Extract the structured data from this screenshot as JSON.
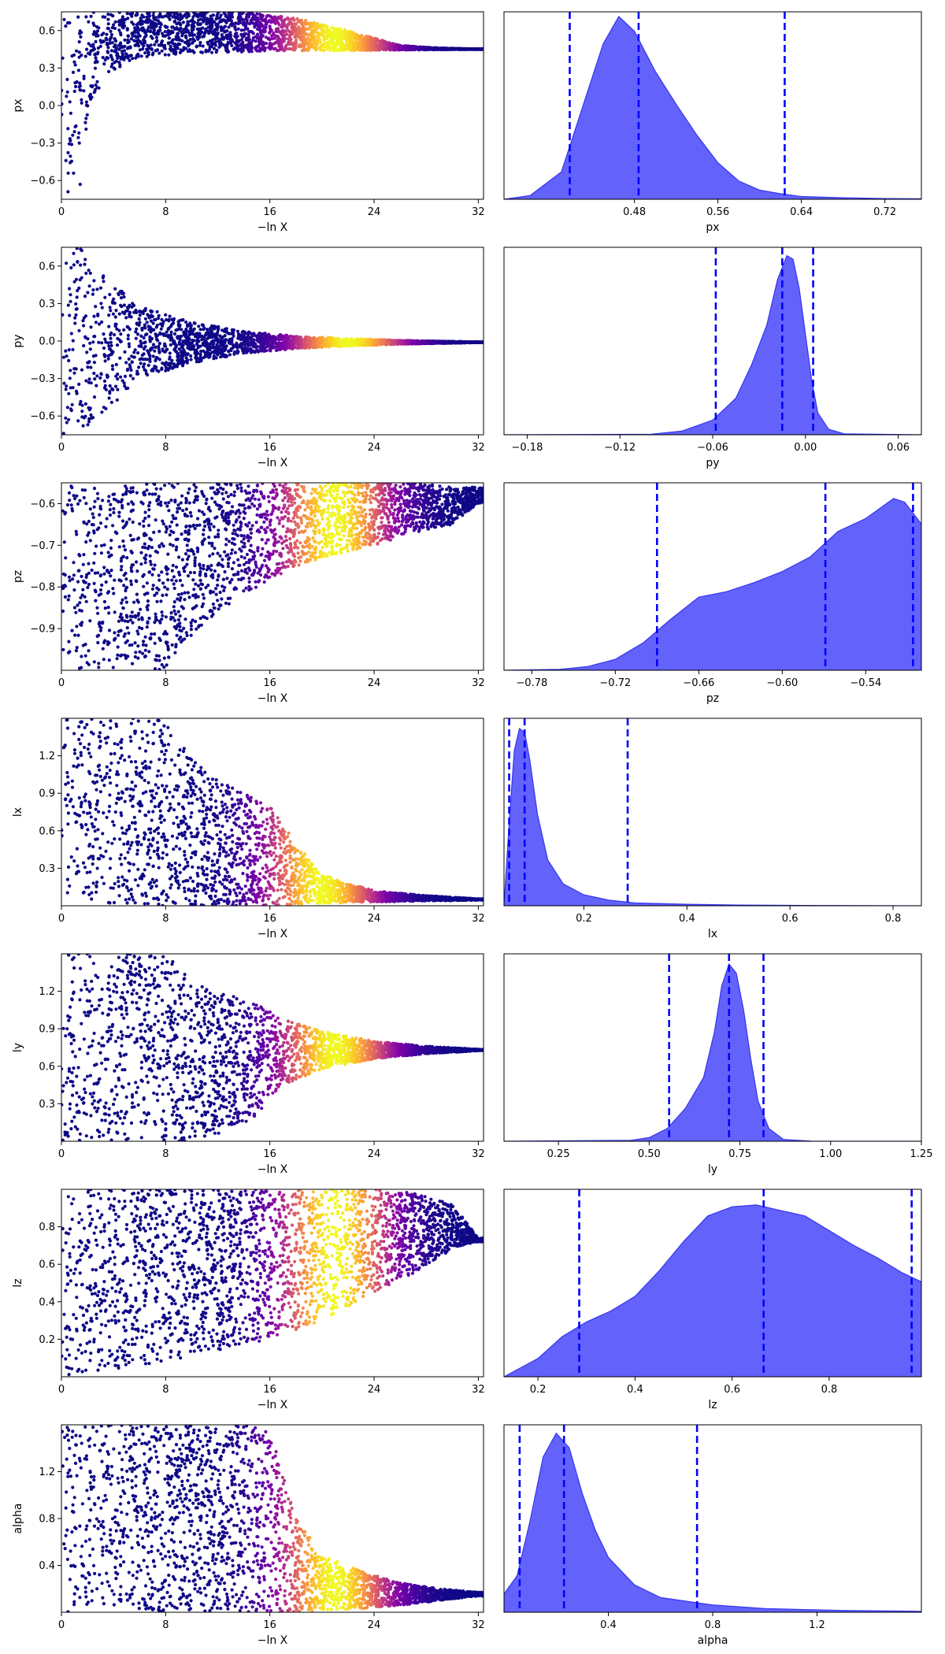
{
  "colors": {
    "posterior_fill": "#6363fb",
    "posterior_edge": "#3434f0",
    "quantile_line": "#0000ff",
    "trace_colormap": "plasma",
    "axes": "#000000"
  },
  "chart_data": [
    {
      "type": "scatter",
      "panel": "trace",
      "param": "px",
      "xlabel": "−ln X",
      "ylabel": "px",
      "xlim": [
        0,
        32.4
      ],
      "ylim": [
        -0.75,
        0.75
      ],
      "xticks": [
        0,
        8,
        16,
        24,
        32
      ],
      "yticks": [
        -0.6,
        -0.3,
        0.0,
        0.3,
        0.6
      ],
      "ytick_labels": [
        "−0.6",
        "−0.3",
        "0.0",
        "0.3",
        "0.6"
      ],
      "converges_to": 0.45,
      "color_peak_x": 21,
      "envelope": [
        {
          "x": 0.0,
          "lo": -0.75,
          "hi": 0.75
        },
        {
          "x": 1.5,
          "lo": -0.65,
          "hi": 0.75
        },
        {
          "x": 2.2,
          "lo": 0.0,
          "hi": 0.75
        },
        {
          "x": 3.5,
          "lo": 0.25,
          "hi": 0.75
        },
        {
          "x": 6.0,
          "lo": 0.38,
          "hi": 0.75
        },
        {
          "x": 10.0,
          "lo": 0.42,
          "hi": 0.75
        },
        {
          "x": 14.0,
          "lo": 0.43,
          "hi": 0.75
        },
        {
          "x": 18.0,
          "lo": 0.44,
          "hi": 0.7
        },
        {
          "x": 22.0,
          "lo": 0.44,
          "hi": 0.6
        },
        {
          "x": 26.0,
          "lo": 0.445,
          "hi": 0.48
        },
        {
          "x": 29.0,
          "lo": 0.448,
          "hi": 0.46
        },
        {
          "x": 32.0,
          "lo": 0.45,
          "hi": 0.452
        }
      ]
    },
    {
      "type": "area",
      "panel": "posterior",
      "param": "px",
      "xlabel": "px",
      "xlim": [
        0.355,
        0.755
      ],
      "xticks": [
        0.48,
        0.56,
        0.64,
        0.72
      ],
      "xtick_labels": [
        "0.48",
        "0.56",
        "0.64",
        "0.72"
      ],
      "quantiles": [
        0.418,
        0.484,
        0.624
      ],
      "density": [
        [
          0.355,
          0.0
        ],
        [
          0.38,
          0.02
        ],
        [
          0.41,
          0.15
        ],
        [
          0.43,
          0.5
        ],
        [
          0.45,
          0.85
        ],
        [
          0.465,
          1.0
        ],
        [
          0.48,
          0.92
        ],
        [
          0.5,
          0.7
        ],
        [
          0.52,
          0.52
        ],
        [
          0.54,
          0.35
        ],
        [
          0.56,
          0.2
        ],
        [
          0.58,
          0.1
        ],
        [
          0.6,
          0.05
        ],
        [
          0.62,
          0.03
        ],
        [
          0.64,
          0.015
        ],
        [
          0.68,
          0.008
        ],
        [
          0.72,
          0.004
        ],
        [
          0.755,
          0.003
        ]
      ]
    },
    {
      "type": "scatter",
      "panel": "trace",
      "param": "py",
      "xlabel": "−ln X",
      "ylabel": "py",
      "xlim": [
        0,
        32.4
      ],
      "ylim": [
        -0.75,
        0.75
      ],
      "xticks": [
        0,
        8,
        16,
        24,
        32
      ],
      "yticks": [
        -0.6,
        -0.3,
        0.0,
        0.3,
        0.6
      ],
      "ytick_labels": [
        "−0.6",
        "−0.3",
        "0.0",
        "0.3",
        "0.6"
      ],
      "converges_to": -0.01,
      "color_peak_x": 22,
      "envelope": [
        {
          "x": 0.0,
          "lo": -0.75,
          "hi": 0.75
        },
        {
          "x": 1.5,
          "lo": -0.75,
          "hi": 0.75
        },
        {
          "x": 3.5,
          "lo": -0.55,
          "hi": 0.5
        },
        {
          "x": 6.0,
          "lo": -0.3,
          "hi": 0.28
        },
        {
          "x": 10.0,
          "lo": -0.18,
          "hi": 0.15
        },
        {
          "x": 14.0,
          "lo": -0.1,
          "hi": 0.08
        },
        {
          "x": 18.0,
          "lo": -0.06,
          "hi": 0.04
        },
        {
          "x": 22.0,
          "lo": -0.04,
          "hi": 0.02
        },
        {
          "x": 26.0,
          "lo": -0.025,
          "hi": 0.005
        },
        {
          "x": 32.0,
          "lo": -0.012,
          "hi": -0.008
        }
      ]
    },
    {
      "type": "area",
      "panel": "posterior",
      "param": "py",
      "xlabel": "py",
      "xlim": [
        -0.195,
        0.075
      ],
      "xticks": [
        -0.18,
        -0.12,
        -0.06,
        0.0,
        0.06
      ],
      "xtick_labels": [
        "−0.18",
        "−0.12",
        "−0.06",
        "0.00",
        "0.06"
      ],
      "quantiles": [
        -0.058,
        -0.015,
        0.005
      ],
      "density": [
        [
          -0.195,
          0.0
        ],
        [
          -0.1,
          0.003
        ],
        [
          -0.08,
          0.02
        ],
        [
          -0.06,
          0.08
        ],
        [
          -0.045,
          0.2
        ],
        [
          -0.035,
          0.38
        ],
        [
          -0.025,
          0.6
        ],
        [
          -0.018,
          0.85
        ],
        [
          -0.012,
          0.98
        ],
        [
          -0.008,
          0.96
        ],
        [
          -0.004,
          0.8
        ],
        [
          0.0,
          0.55
        ],
        [
          0.004,
          0.3
        ],
        [
          0.008,
          0.12
        ],
        [
          0.015,
          0.03
        ],
        [
          0.025,
          0.005
        ],
        [
          0.075,
          0.0
        ]
      ]
    },
    {
      "type": "scatter",
      "panel": "trace",
      "param": "pz",
      "xlabel": "−ln X",
      "ylabel": "pz",
      "xlim": [
        0,
        32.4
      ],
      "ylim": [
        -1.0,
        -0.55
      ],
      "xticks": [
        0,
        8,
        16,
        24,
        32
      ],
      "yticks": [
        -0.9,
        -0.8,
        -0.7,
        -0.6
      ],
      "ytick_labels": [
        "−0.9",
        "−0.8",
        "−0.7",
        "−0.6"
      ],
      "converges_to": -0.56,
      "color_peak_x": 21,
      "envelope": [
        {
          "x": 0.0,
          "lo": -1.0,
          "hi": -0.55
        },
        {
          "x": 8.0,
          "lo": -1.0,
          "hi": -0.55
        },
        {
          "x": 9.0,
          "lo": -0.95,
          "hi": -0.55
        },
        {
          "x": 12.0,
          "lo": -0.86,
          "hi": -0.55
        },
        {
          "x": 16.0,
          "lo": -0.78,
          "hi": -0.55
        },
        {
          "x": 20.0,
          "lo": -0.73,
          "hi": -0.55
        },
        {
          "x": 24.0,
          "lo": -0.7,
          "hi": -0.55
        },
        {
          "x": 27.0,
          "lo": -0.67,
          "hi": -0.55
        },
        {
          "x": 30.0,
          "lo": -0.65,
          "hi": -0.56
        },
        {
          "x": 32.0,
          "lo": -0.6,
          "hi": -0.56
        }
      ]
    },
    {
      "type": "area",
      "panel": "posterior",
      "param": "pz",
      "xlabel": "pz",
      "xlim": [
        -0.8,
        -0.5
      ],
      "xticks": [
        -0.78,
        -0.72,
        -0.66,
        -0.6,
        -0.54
      ],
      "xtick_labels": [
        "−0.78",
        "−0.72",
        "−0.66",
        "−0.60",
        "−0.54"
      ],
      "quantiles": [
        -0.69,
        -0.569,
        -0.506
      ],
      "density": [
        [
          -0.8,
          0.0
        ],
        [
          -0.76,
          0.005
        ],
        [
          -0.74,
          0.02
        ],
        [
          -0.72,
          0.06
        ],
        [
          -0.7,
          0.15
        ],
        [
          -0.68,
          0.28
        ],
        [
          -0.66,
          0.4
        ],
        [
          -0.64,
          0.43
        ],
        [
          -0.62,
          0.48
        ],
        [
          -0.6,
          0.54
        ],
        [
          -0.58,
          0.62
        ],
        [
          -0.56,
          0.76
        ],
        [
          -0.54,
          0.83
        ],
        [
          -0.52,
          0.94
        ],
        [
          -0.512,
          0.92
        ],
        [
          -0.505,
          0.85
        ],
        [
          -0.5,
          0.8
        ]
      ]
    },
    {
      "type": "scatter",
      "panel": "trace",
      "param": "lx",
      "xlabel": "−ln X",
      "ylabel": "lx",
      "xlim": [
        0,
        32.4
      ],
      "ylim": [
        0.0,
        1.5
      ],
      "xticks": [
        0,
        8,
        16,
        24,
        32
      ],
      "yticks": [
        0.3,
        0.6,
        0.9,
        1.2
      ],
      "ytick_labels": [
        "0.3",
        "0.6",
        "0.9",
        "1.2"
      ],
      "converges_to": 0.05,
      "color_peak_x": 20,
      "envelope": [
        {
          "x": 0.0,
          "lo": 0.0,
          "hi": 1.5
        },
        {
          "x": 8.0,
          "lo": 0.0,
          "hi": 1.5
        },
        {
          "x": 9.0,
          "lo": 0.0,
          "hi": 1.3
        },
        {
          "x": 12.0,
          "lo": 0.0,
          "hi": 1.0
        },
        {
          "x": 16.0,
          "lo": 0.0,
          "hi": 0.8
        },
        {
          "x": 18.0,
          "lo": 0.01,
          "hi": 0.5
        },
        {
          "x": 20.0,
          "lo": 0.02,
          "hi": 0.25
        },
        {
          "x": 24.0,
          "lo": 0.03,
          "hi": 0.12
        },
        {
          "x": 28.0,
          "lo": 0.04,
          "hi": 0.08
        },
        {
          "x": 32.0,
          "lo": 0.045,
          "hi": 0.055
        }
      ]
    },
    {
      "type": "area",
      "panel": "posterior",
      "param": "lx",
      "xlabel": "lx",
      "xlim": [
        0.045,
        0.855
      ],
      "xticks": [
        0.2,
        0.4,
        0.6,
        0.8
      ],
      "xtick_labels": [
        "0.2",
        "0.4",
        "0.6",
        "0.8"
      ],
      "quantiles": [
        0.055,
        0.085,
        0.285
      ],
      "density": [
        [
          0.045,
          0.0
        ],
        [
          0.055,
          0.45
        ],
        [
          0.065,
          0.85
        ],
        [
          0.075,
          0.97
        ],
        [
          0.085,
          0.95
        ],
        [
          0.095,
          0.8
        ],
        [
          0.11,
          0.5
        ],
        [
          0.13,
          0.25
        ],
        [
          0.16,
          0.12
        ],
        [
          0.2,
          0.06
        ],
        [
          0.25,
          0.03
        ],
        [
          0.3,
          0.015
        ],
        [
          0.4,
          0.008
        ],
        [
          0.5,
          0.004
        ],
        [
          0.6,
          0.002
        ],
        [
          0.855,
          0.0
        ]
      ]
    },
    {
      "type": "scatter",
      "panel": "trace",
      "param": "ly",
      "xlabel": "−ln X",
      "ylabel": "ly",
      "xlim": [
        0,
        32.4
      ],
      "ylim": [
        0.0,
        1.5
      ],
      "xticks": [
        0,
        8,
        16,
        24,
        32
      ],
      "yticks": [
        0.3,
        0.6,
        0.9,
        1.2
      ],
      "ytick_labels": [
        "0.3",
        "0.6",
        "0.9",
        "1.2"
      ],
      "converges_to": 0.73,
      "color_peak_x": 21,
      "envelope": [
        {
          "x": 0.0,
          "lo": 0.0,
          "hi": 1.5
        },
        {
          "x": 8.0,
          "lo": 0.0,
          "hi": 1.5
        },
        {
          "x": 9.5,
          "lo": 0.0,
          "hi": 1.35
        },
        {
          "x": 12.0,
          "lo": 0.05,
          "hi": 1.2
        },
        {
          "x": 15.0,
          "lo": 0.2,
          "hi": 1.1
        },
        {
          "x": 17.0,
          "lo": 0.45,
          "hi": 0.98
        },
        {
          "x": 20.0,
          "lo": 0.58,
          "hi": 0.88
        },
        {
          "x": 24.0,
          "lo": 0.66,
          "hi": 0.8
        },
        {
          "x": 28.0,
          "lo": 0.7,
          "hi": 0.76
        },
        {
          "x": 32.0,
          "lo": 0.725,
          "hi": 0.735
        }
      ]
    },
    {
      "type": "area",
      "panel": "posterior",
      "param": "ly",
      "xlabel": "ly",
      "xlim": [
        0.1,
        1.25
      ],
      "xticks": [
        0.25,
        0.5,
        0.75,
        1.0,
        1.25
      ],
      "xtick_labels": [
        "0.25",
        "0.50",
        "0.75",
        "1.00",
        "1.25"
      ],
      "quantiles": [
        0.555,
        0.72,
        0.815
      ],
      "density": [
        [
          0.1,
          0.0
        ],
        [
          0.45,
          0.005
        ],
        [
          0.5,
          0.02
        ],
        [
          0.55,
          0.07
        ],
        [
          0.6,
          0.18
        ],
        [
          0.65,
          0.35
        ],
        [
          0.68,
          0.6
        ],
        [
          0.7,
          0.85
        ],
        [
          0.72,
          0.97
        ],
        [
          0.74,
          0.92
        ],
        [
          0.76,
          0.72
        ],
        [
          0.78,
          0.45
        ],
        [
          0.8,
          0.22
        ],
        [
          0.83,
          0.07
        ],
        [
          0.87,
          0.01
        ],
        [
          0.95,
          0.0
        ],
        [
          1.25,
          0.0
        ]
      ]
    },
    {
      "type": "scatter",
      "panel": "trace",
      "param": "lz",
      "xlabel": "−ln X",
      "ylabel": "lz",
      "xlim": [
        0,
        32.4
      ],
      "ylim": [
        0.0,
        1.0
      ],
      "xticks": [
        0,
        8,
        16,
        24,
        32
      ],
      "yticks": [
        0.2,
        0.4,
        0.6,
        0.8
      ],
      "ytick_labels": [
        "0.2",
        "0.4",
        "0.6",
        "0.8"
      ],
      "converges_to": 0.75,
      "color_peak_x": 21,
      "envelope": [
        {
          "x": 0.0,
          "lo": 0.0,
          "hi": 1.0
        },
        {
          "x": 4.0,
          "lo": 0.03,
          "hi": 1.0
        },
        {
          "x": 8.0,
          "lo": 0.08,
          "hi": 1.0
        },
        {
          "x": 12.0,
          "lo": 0.14,
          "hi": 1.0
        },
        {
          "x": 16.0,
          "lo": 0.2,
          "hi": 1.0
        },
        {
          "x": 20.0,
          "lo": 0.3,
          "hi": 1.0
        },
        {
          "x": 24.0,
          "lo": 0.45,
          "hi": 1.0
        },
        {
          "x": 27.0,
          "lo": 0.55,
          "hi": 0.98
        },
        {
          "x": 30.0,
          "lo": 0.68,
          "hi": 0.92
        },
        {
          "x": 32.0,
          "lo": 0.72,
          "hi": 0.74
        }
      ]
    },
    {
      "type": "area",
      "panel": "posterior",
      "param": "lz",
      "xlabel": "lz",
      "xlim": [
        0.13,
        0.99
      ],
      "xticks": [
        0.2,
        0.4,
        0.6,
        0.8
      ],
      "xtick_labels": [
        "0.2",
        "0.4",
        "0.6",
        "0.8"
      ],
      "quantiles": [
        0.285,
        0.665,
        0.97
      ],
      "density": [
        [
          0.13,
          0.0
        ],
        [
          0.2,
          0.1
        ],
        [
          0.25,
          0.22
        ],
        [
          0.3,
          0.3
        ],
        [
          0.35,
          0.36
        ],
        [
          0.4,
          0.44
        ],
        [
          0.45,
          0.58
        ],
        [
          0.5,
          0.74
        ],
        [
          0.55,
          0.88
        ],
        [
          0.6,
          0.93
        ],
        [
          0.65,
          0.94
        ],
        [
          0.7,
          0.91
        ],
        [
          0.75,
          0.88
        ],
        [
          0.8,
          0.8
        ],
        [
          0.85,
          0.72
        ],
        [
          0.9,
          0.65
        ],
        [
          0.95,
          0.57
        ],
        [
          0.99,
          0.52
        ]
      ]
    },
    {
      "type": "scatter",
      "panel": "trace",
      "param": "alpha",
      "xlabel": "−ln X",
      "ylabel": "alpha",
      "xlim": [
        0,
        32.4
      ],
      "ylim": [
        0.0,
        1.6
      ],
      "xticks": [
        0,
        8,
        16,
        24,
        32
      ],
      "yticks": [
        0.4,
        0.8,
        1.2
      ],
      "ytick_labels": [
        "0.4",
        "0.8",
        "1.2"
      ],
      "converges_to": 0.15,
      "color_peak_x": 21,
      "envelope": [
        {
          "x": 0.0,
          "lo": 0.0,
          "hi": 1.6
        },
        {
          "x": 14.0,
          "lo": 0.0,
          "hi": 1.6
        },
        {
          "x": 16.0,
          "lo": 0.0,
          "hi": 1.55
        },
        {
          "x": 17.0,
          "lo": 0.0,
          "hi": 1.2
        },
        {
          "x": 18.0,
          "lo": 0.0,
          "hi": 0.8
        },
        {
          "x": 20.0,
          "lo": 0.01,
          "hi": 0.5
        },
        {
          "x": 23.0,
          "lo": 0.03,
          "hi": 0.35
        },
        {
          "x": 26.0,
          "lo": 0.06,
          "hi": 0.25
        },
        {
          "x": 29.0,
          "lo": 0.1,
          "hi": 0.2
        },
        {
          "x": 32.0,
          "lo": 0.14,
          "hi": 0.17
        }
      ]
    },
    {
      "type": "area",
      "panel": "posterior",
      "param": "alpha",
      "xlabel": "alpha",
      "xlim": [
        0.0,
        1.6
      ],
      "xticks": [
        0.4,
        0.8,
        1.2
      ],
      "xtick_labels": [
        "0.4",
        "0.8",
        "1.2"
      ],
      "quantiles": [
        0.06,
        0.23,
        0.74
      ],
      "density": [
        [
          0.0,
          0.1
        ],
        [
          0.05,
          0.2
        ],
        [
          0.1,
          0.5
        ],
        [
          0.15,
          0.85
        ],
        [
          0.2,
          0.98
        ],
        [
          0.25,
          0.9
        ],
        [
          0.3,
          0.65
        ],
        [
          0.35,
          0.45
        ],
        [
          0.4,
          0.3
        ],
        [
          0.5,
          0.15
        ],
        [
          0.6,
          0.08
        ],
        [
          0.8,
          0.04
        ],
        [
          1.0,
          0.02
        ],
        [
          1.3,
          0.01
        ],
        [
          1.6,
          0.005
        ]
      ]
    }
  ]
}
